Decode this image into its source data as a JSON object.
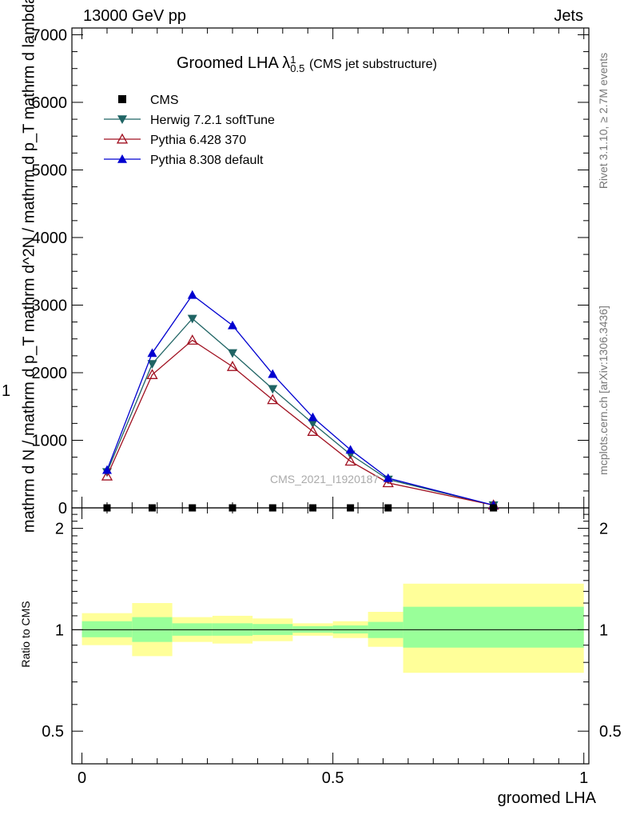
{
  "header": {
    "left": "13000 GeV pp",
    "right": "Jets"
  },
  "side": {
    "rivet": "Rivet 3.1.10, ≥ 2.7M events",
    "mcplots": "mcplots.cern.ch [arXiv:1306.3436]"
  },
  "watermark": "CMS_2021_I1920187",
  "colors": {
    "herwig": "#1f6464",
    "pythia6": "#a01020",
    "pythia8": "#0000d0",
    "band_inner": "#99ff99",
    "band_outer": "#ffff99"
  },
  "chart_data": [
    {
      "type": "line",
      "title": "Groomed LHA",
      "title_symbol": "λ",
      "title_sup": "1",
      "title_sub": "0.5",
      "title_suffix": "(CMS jet substructure)",
      "ylabel_numerator": "1",
      "ylabel": "mathrm d N / mathrm d p_T mathrm d^2N / mathrm d p_T mathrm d lambda",
      "yticks": [
        "0",
        "1000",
        "2000",
        "3000",
        "4000",
        "5000",
        "6000",
        "7000"
      ],
      "ylim": [
        0,
        7100
      ],
      "xlim": [
        -0.02,
        1.01
      ],
      "legend_position": "top-left",
      "x": [
        0.05,
        0.14,
        0.22,
        0.3,
        0.38,
        0.46,
        0.535,
        0.61,
        0.82
      ],
      "series": [
        {
          "name": "CMS",
          "marker": "square",
          "values": [
            0,
            0,
            0,
            0,
            0,
            0,
            0,
            0,
            0
          ]
        },
        {
          "name": "Herwig 7.2.1 softTune",
          "marker": "triangle-down",
          "values": [
            530,
            2130,
            2800,
            2290,
            1760,
            1250,
            790,
            420,
            40
          ]
        },
        {
          "name": "Pythia 6.428 370",
          "marker": "triangle-open",
          "values": [
            470,
            1970,
            2480,
            2090,
            1600,
            1130,
            690,
            370,
            40
          ]
        },
        {
          "name": "Pythia 8.308 default",
          "marker": "triangle-up",
          "values": [
            560,
            2290,
            3150,
            2700,
            1980,
            1340,
            860,
            440,
            40
          ]
        }
      ]
    },
    {
      "type": "area",
      "ylabel": "Ratio to CMS",
      "xlabel": "groomed LHA",
      "yticks": [
        "0.5",
        "1",
        "2"
      ],
      "xticks": [
        "0",
        "0.5",
        "1"
      ],
      "ylim": [
        0.4,
        2.3
      ],
      "log_scale_y": true,
      "reference_line": 1,
      "bins": [
        {
          "lo": 0.0,
          "hi": 0.1,
          "inner": [
            0.95,
            1.06
          ],
          "outer": [
            0.9,
            1.12
          ]
        },
        {
          "lo": 0.1,
          "hi": 0.18,
          "inner": [
            0.92,
            1.09
          ],
          "outer": [
            0.835,
            1.2
          ]
        },
        {
          "lo": 0.18,
          "hi": 0.26,
          "inner": [
            0.96,
            1.045
          ],
          "outer": [
            0.92,
            1.09
          ]
        },
        {
          "lo": 0.26,
          "hi": 0.34,
          "inner": [
            0.96,
            1.045
          ],
          "outer": [
            0.91,
            1.1
          ]
        },
        {
          "lo": 0.34,
          "hi": 0.42,
          "inner": [
            0.965,
            1.04
          ],
          "outer": [
            0.925,
            1.08
          ]
        },
        {
          "lo": 0.42,
          "hi": 0.5,
          "inner": [
            0.98,
            1.025
          ],
          "outer": [
            0.96,
            1.045
          ]
        },
        {
          "lo": 0.5,
          "hi": 0.57,
          "inner": [
            0.975,
            1.03
          ],
          "outer": [
            0.945,
            1.06
          ]
        },
        {
          "lo": 0.57,
          "hi": 0.64,
          "inner": [
            0.945,
            1.055
          ],
          "outer": [
            0.89,
            1.13
          ]
        },
        {
          "lo": 0.64,
          "hi": 1.0,
          "inner": [
            0.885,
            1.17
          ],
          "outer": [
            0.745,
            1.37
          ]
        }
      ]
    }
  ]
}
